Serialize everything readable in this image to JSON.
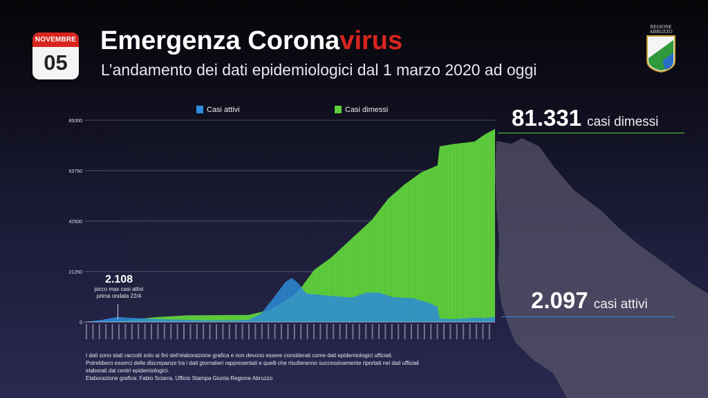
{
  "calendar": {
    "month": "NOVEMBRE",
    "day": "05"
  },
  "header": {
    "title_main": "Emergenza Corona",
    "title_accent": "virus",
    "subtitle": "L’andamento dei dati epidemiologici dal 1 marzo 2020 ad oggi",
    "logo_text_1": "REGIONE",
    "logo_text_2": "ABRUZZO"
  },
  "colors": {
    "accent": "#d8251f",
    "dimessi": "#5fcf3d",
    "attivi": "#2e8ee0"
  },
  "stats": {
    "dimessi_value": "81.331",
    "dimessi_label": "casi dimessi",
    "attivi_value": "2.097",
    "attivi_label": "casi attivi"
  },
  "annotation": {
    "peak_value": "2.108",
    "peak_label_1": "picco max casi attivi",
    "peak_label_2": "prima ondata 22/4"
  },
  "footnote": [
    "I dati sono stati raccolti solo ai fini dell'elaborazione grafica e non devono essere considerati come dati epidemiologici ufficiali.",
    "Potrebbero esserci delle discrepanze tra i dati giornalieri rappresentati e quelli che risulteranno successivamente riportati nei dati ufficiali",
    "elaborati dai centri epidemiologici.",
    "Elaborazione grafica: Fabio Sciarra, Ufficio Stampa Giunta Regione Abruzzo"
  ],
  "chart_data": {
    "type": "area",
    "title": "",
    "xlabel": "",
    "ylabel": "",
    "ylim": [
      0,
      85000
    ],
    "yticks": [
      0,
      21250,
      42500,
      63750,
      85000
    ],
    "grid": true,
    "legend": "top",
    "series": [
      {
        "name": "Casi attivi",
        "color": "#2e8ee0",
        "points": [
          [
            0,
            0
          ],
          [
            0.04,
            800
          ],
          [
            0.08,
            2100
          ],
          [
            0.1,
            1900
          ],
          [
            0.14,
            1500
          ],
          [
            0.2,
            1100
          ],
          [
            0.3,
            700
          ],
          [
            0.36,
            700
          ],
          [
            0.4,
            900
          ],
          [
            0.43,
            3500
          ],
          [
            0.46,
            10000
          ],
          [
            0.49,
            17000
          ],
          [
            0.505,
            18500
          ],
          [
            0.52,
            16500
          ],
          [
            0.54,
            12000
          ],
          [
            0.6,
            11000
          ],
          [
            0.65,
            10300
          ],
          [
            0.69,
            12500
          ],
          [
            0.72,
            12300
          ],
          [
            0.75,
            10500
          ],
          [
            0.8,
            10000
          ],
          [
            0.84,
            8000
          ],
          [
            0.86,
            6500
          ],
          [
            0.865,
            1500
          ],
          [
            0.9,
            1200
          ],
          [
            0.95,
            1800
          ],
          [
            0.975,
            1700
          ],
          [
            1,
            2097
          ]
        ]
      },
      {
        "name": "Casi dimessi",
        "color": "#5fcf3d",
        "points": [
          [
            0,
            0
          ],
          [
            0.05,
            200
          ],
          [
            0.1,
            500
          ],
          [
            0.17,
            2000
          ],
          [
            0.25,
            2800
          ],
          [
            0.4,
            3000
          ],
          [
            0.45,
            5000
          ],
          [
            0.5,
            10000
          ],
          [
            0.53,
            15000
          ],
          [
            0.56,
            22000
          ],
          [
            0.6,
            27000
          ],
          [
            0.65,
            35000
          ],
          [
            0.7,
            43000
          ],
          [
            0.74,
            52000
          ],
          [
            0.78,
            58000
          ],
          [
            0.82,
            63000
          ],
          [
            0.86,
            66000
          ],
          [
            0.865,
            74000
          ],
          [
            0.9,
            75000
          ],
          [
            0.95,
            76000
          ],
          [
            0.975,
            79000
          ],
          [
            1,
            81331
          ]
        ]
      }
    ]
  }
}
